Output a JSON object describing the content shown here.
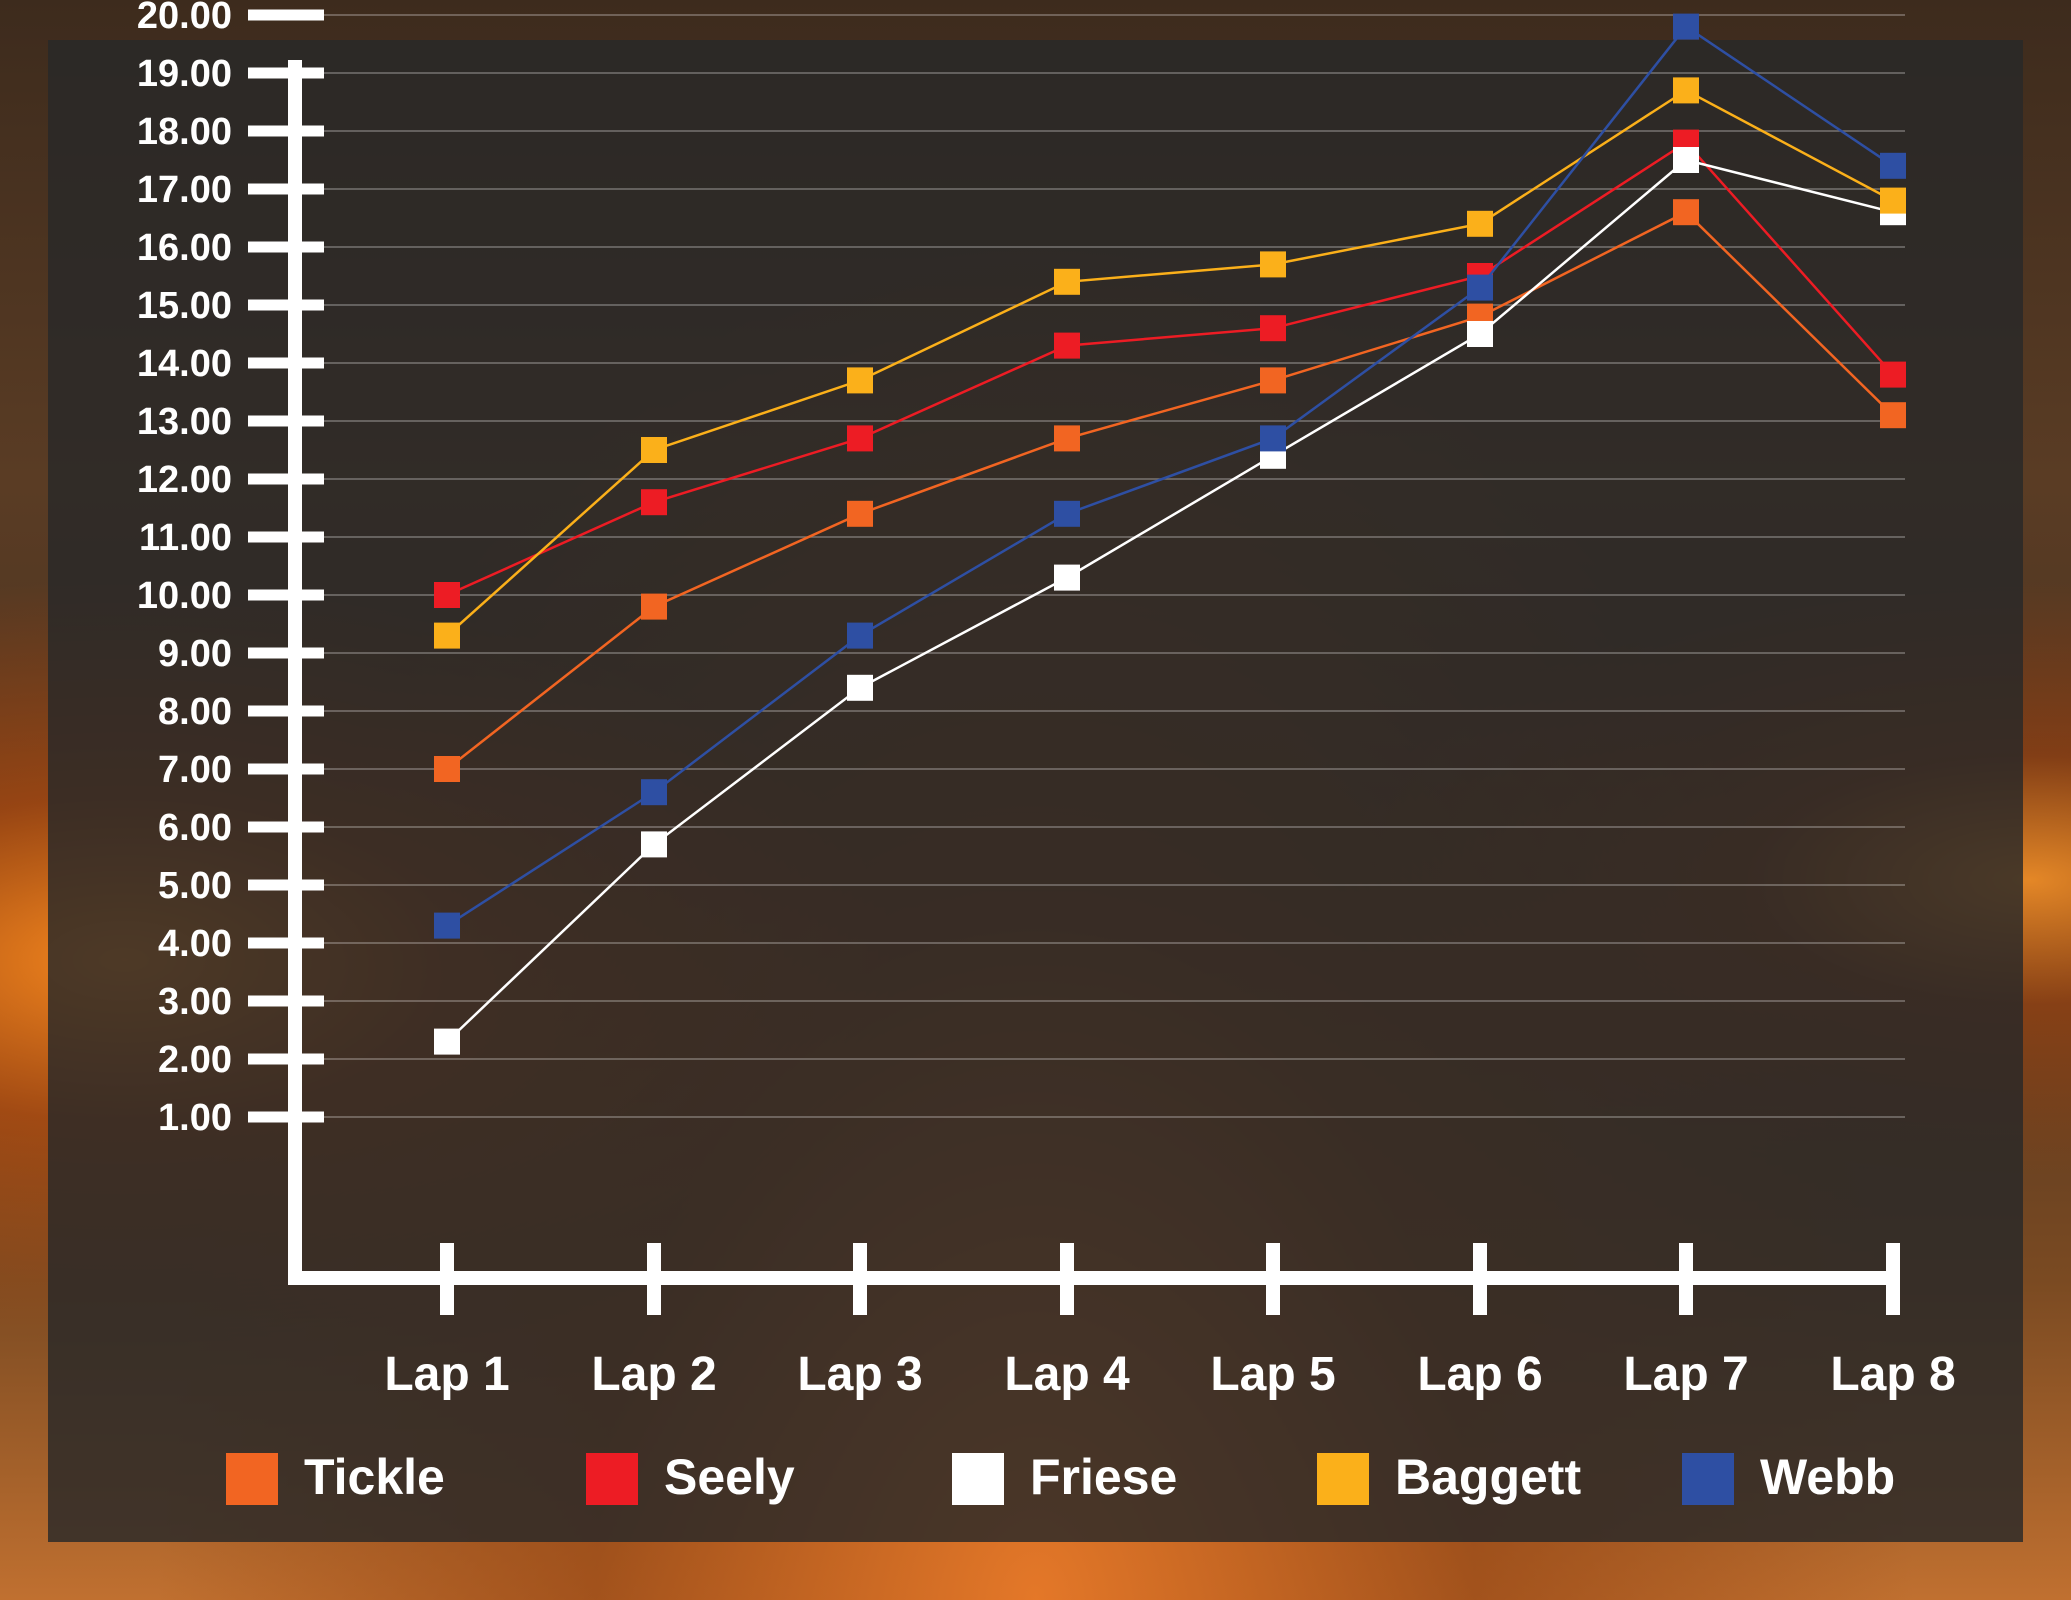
{
  "chart_data": {
    "type": "line",
    "categories": [
      "Lap 1",
      "Lap 2",
      "Lap 3",
      "Lap 4",
      "Lap 5",
      "Lap 6",
      "Lap 7",
      "Lap 8"
    ],
    "y_ticks": [
      "1.00",
      "2.00",
      "3.00",
      "4.00",
      "5.00",
      "6.00",
      "7.00",
      "8.00",
      "9.00",
      "10.00",
      "11.00",
      "12.00",
      "13.00",
      "14.00",
      "15.00",
      "16.00",
      "17.00",
      "18.00",
      "19.00",
      "20.00"
    ],
    "ylim": [
      0,
      20
    ],
    "grid": true,
    "legend_position": "bottom",
    "series": [
      {
        "name": "Tickle",
        "color": "#f26522",
        "values": [
          7.0,
          9.8,
          11.4,
          12.7,
          13.7,
          14.8,
          16.6,
          13.1
        ]
      },
      {
        "name": "Seely",
        "color": "#ed1c24",
        "values": [
          10.0,
          11.6,
          12.7,
          14.3,
          14.6,
          15.5,
          17.8,
          13.8
        ]
      },
      {
        "name": "Friese",
        "color": "#ffffff",
        "values": [
          2.3,
          5.7,
          8.4,
          10.3,
          12.4,
          14.5,
          17.5,
          16.6
        ]
      },
      {
        "name": "Baggett",
        "color": "#fbb01a",
        "values": [
          9.3,
          12.5,
          13.7,
          15.4,
          15.7,
          16.4,
          18.7,
          16.8
        ]
      },
      {
        "name": "Webb",
        "color": "#2e4fa3",
        "values": [
          4.3,
          6.6,
          9.3,
          11.4,
          12.7,
          15.3,
          19.8,
          17.4
        ]
      }
    ]
  }
}
